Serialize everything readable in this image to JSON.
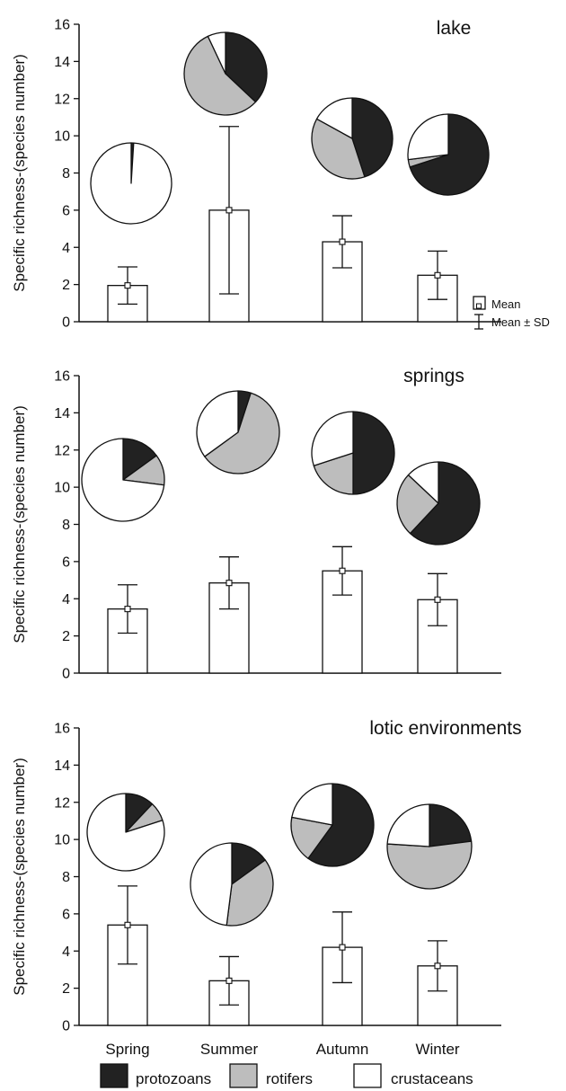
{
  "colors": {
    "protozoans": "#222222",
    "rotifers": "#bdbdbd",
    "crustaceans": "#ffffff",
    "bar_fill": "#ffffff",
    "stroke": "#111111"
  },
  "legend": {
    "protozoans": "protozoans",
    "rotifers": "rotifers",
    "crustaceans": "crustaceans",
    "mean": "Mean",
    "mean_sd": "Mean ± SD"
  },
  "chart_data": [
    {
      "type": "bar",
      "title": "lake",
      "ylabel": "Specific  richness-(species number)",
      "xlabel": "",
      "ylim": [
        0,
        16
      ],
      "yticks": [
        "0",
        "2",
        "4",
        "6",
        "8",
        "10",
        "12",
        "14",
        "16"
      ],
      "categories": [
        "Spring",
        "Summer",
        "Autumn",
        "Winter"
      ],
      "values": [
        1.95,
        6.0,
        4.3,
        2.5
      ],
      "sd": [
        1.0,
        4.5,
        1.4,
        1.3
      ],
      "composition_order": [
        "protozoans",
        "rotifers",
        "crustaceans"
      ],
      "composition": [
        [
          1,
          0,
          99
        ],
        [
          37,
          56,
          7
        ],
        [
          45,
          38,
          17
        ],
        [
          70,
          3,
          27
        ]
      ]
    },
    {
      "type": "bar",
      "title": "springs",
      "ylabel": "Specific  richness-(species number)",
      "xlabel": "",
      "ylim": [
        0,
        16
      ],
      "yticks": [
        "0",
        "2",
        "4",
        "6",
        "8",
        "10",
        "12",
        "14",
        "16"
      ],
      "categories": [
        "Spring",
        "Summer",
        "Autumn",
        "Winter"
      ],
      "values": [
        3.45,
        4.85,
        5.5,
        3.95
      ],
      "sd": [
        1.3,
        1.4,
        1.3,
        1.4
      ],
      "composition_order": [
        "protozoans",
        "rotifers",
        "crustaceans"
      ],
      "composition": [
        [
          15,
          12,
          73
        ],
        [
          5,
          60,
          35
        ],
        [
          50,
          20,
          30
        ],
        [
          62,
          25,
          13
        ]
      ]
    },
    {
      "type": "bar",
      "title": "lotic environments",
      "ylabel": "Specific  richness-(species number)",
      "xlabel": "",
      "ylim": [
        0,
        16
      ],
      "yticks": [
        "0",
        "2",
        "4",
        "6",
        "8",
        "10",
        "12",
        "14",
        "16"
      ],
      "categories": [
        "Spring",
        "Summer",
        "Autumn",
        "Winter"
      ],
      "values": [
        5.4,
        2.4,
        4.2,
        3.2
      ],
      "sd": [
        2.1,
        1.3,
        1.9,
        1.35
      ],
      "composition_order": [
        "protozoans",
        "rotifers",
        "crustaceans"
      ],
      "composition": [
        [
          12,
          8,
          80
        ],
        [
          15,
          37,
          48
        ],
        [
          60,
          18,
          22
        ],
        [
          23,
          53,
          24
        ]
      ]
    }
  ]
}
